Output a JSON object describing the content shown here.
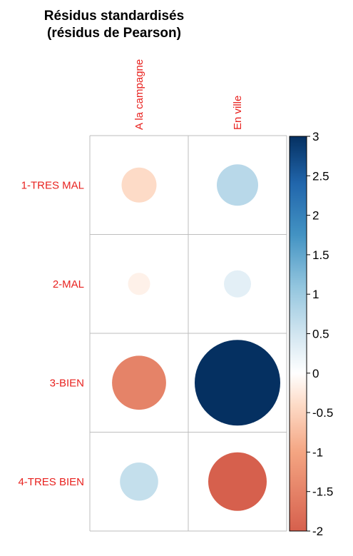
{
  "chart_data": {
    "type": "heatmap",
    "title": [
      "Résidus standardisés",
      "(résidus de Pearson)"
    ],
    "columns": [
      "A la campagne",
      "En ville"
    ],
    "rows": [
      "1-TRES MAL",
      "2-MAL",
      "3-BIEN",
      "4-TRES BIEN"
    ],
    "values": [
      [
        -0.5,
        0.7
      ],
      [
        -0.2,
        0.3
      ],
      [
        -1.2,
        3.0
      ],
      [
        0.6,
        -1.4
      ]
    ],
    "colorbar": {
      "min": -2,
      "max": 3,
      "ticks": [
        "3",
        "2.5",
        "2",
        "1.5",
        "1",
        "0.5",
        "0",
        "-0.5",
        "-1",
        "-1.5",
        "-2"
      ]
    },
    "colors": {
      "label": "#e8221f",
      "grid": "#bebebe",
      "neg_strong": "#67001f",
      "neg": "#b2182b",
      "neg_mid": "#d6604d",
      "neg_light": "#f4a582",
      "neg_pale": "#fddbc7",
      "neutral": "#ffffff",
      "pos_pale": "#d1e5f0",
      "pos_light": "#92c5de",
      "pos_mid": "#4393c3",
      "pos": "#2166ac",
      "pos_strong": "#053061"
    }
  }
}
